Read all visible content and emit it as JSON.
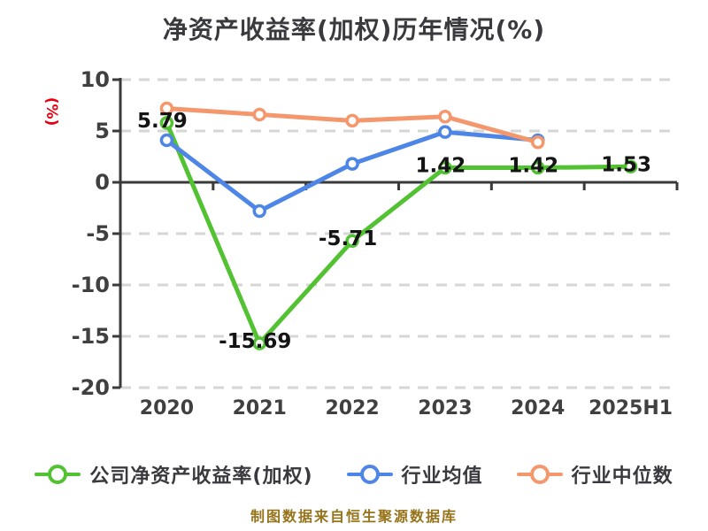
{
  "footer": "制图数据来自恒生聚源数据库",
  "colors": {
    "title_text": "#3a3a3e",
    "axis_text": "#404040",
    "axis_line": "#3a3a3a",
    "grid_line": "#d6d6d6",
    "value_label": "#141414",
    "ylabel_red": "#e60012",
    "footer_gold": "#97731a",
    "legend_text": "#3a3a3e",
    "marker_fill": "#ffffff"
  },
  "chart_data": {
    "type": "line",
    "title": "净资产收益率(加权)历年情况(%)",
    "ylabel": "(%)",
    "xlabel": "",
    "categories": [
      "2020",
      "2021",
      "2022",
      "2023",
      "2024",
      "2025H1"
    ],
    "yticks": [
      10,
      5,
      0,
      -5,
      -10,
      -15,
      -20
    ],
    "ylim": [
      -20,
      10
    ],
    "grid": "horizontal-dashed",
    "legend_position": "bottom",
    "series": [
      {
        "id": "company",
        "name": "公司净资产收益率(加权)",
        "color": "#52c232",
        "values": [
          5.79,
          -15.69,
          -5.71,
          1.42,
          1.42,
          1.53
        ],
        "show_labels": true,
        "labels": [
          "5.79",
          "-15.69",
          "-5.71",
          "1.42",
          "1.42",
          "1.53"
        ]
      },
      {
        "id": "industry_mean",
        "name": "行业均值",
        "color": "#4e86e8",
        "values": [
          4.1,
          -2.8,
          1.8,
          4.9,
          4.1,
          null
        ],
        "show_labels": false,
        "labels": []
      },
      {
        "id": "industry_median",
        "name": "行业中位数",
        "color": "#f4976c",
        "values": [
          7.2,
          6.6,
          6.0,
          6.4,
          3.9,
          null
        ],
        "show_labels": false,
        "labels": []
      }
    ]
  }
}
